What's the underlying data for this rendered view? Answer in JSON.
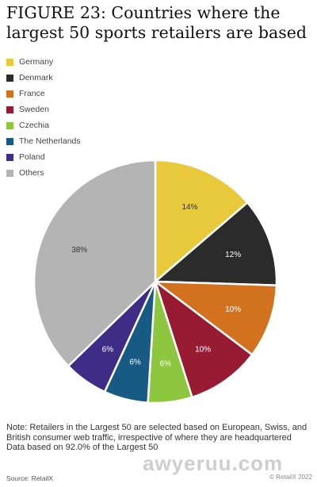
{
  "figure": {
    "title": "FIGURE 23: Countries where the largest 50 sports retailers are based",
    "note_line1": "Note: Retailers in the Largest 50 are selected based on European, Swiss, and British consumer web traffic, irrespective of where they are headquartered",
    "note_line2": "Data based on 92.0% of the Largest 50",
    "source": "Source: RetailX",
    "credit": "© RetailX 2022",
    "watermark": "awyeruu.com"
  },
  "colors": {
    "Germany": "#E8C93B",
    "Denmark": "#2B2B2B",
    "France": "#D2711E",
    "Sweden": "#971B33",
    "Czechia": "#8DC63F",
    "The Netherlands": "#175A84",
    "Poland": "#3E2C86",
    "Others": "#B4B4B4"
  },
  "chart_data": {
    "type": "pie",
    "title": "FIGURE 23: Countries where the largest 50 sports retailers are based",
    "legend_position": "top-left",
    "start_angle": "12 o'clock",
    "direction": "clockwise",
    "categories": [
      "Germany",
      "Denmark",
      "France",
      "Sweden",
      "Czechia",
      "The Netherlands",
      "Poland",
      "Others"
    ],
    "values": [
      14,
      12,
      10,
      10,
      6,
      6,
      6,
      38
    ],
    "labels": [
      "14%",
      "12%",
      "10%",
      "10%",
      "6%",
      "6%",
      "6%",
      "38%"
    ]
  }
}
